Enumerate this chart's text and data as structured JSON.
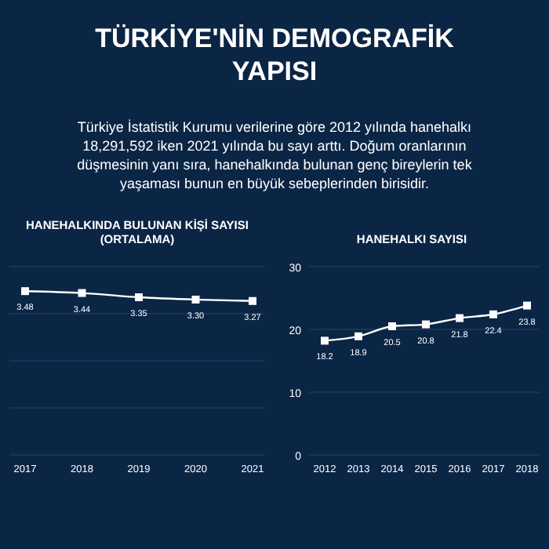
{
  "chart_data": [
    {
      "type": "other",
      "title": "TÜRKİYE'NİN DEMOGRAFİK YAPISI",
      "subtitle": "Türkiye İstatistik Kurumu verilerine göre 2012 yılında hanehalkı 18,291,592 iken 2021 yılında bu sayı arttı. Doğum oranlarının düşmesinin yanı sıra, hanehalkında bulunan genç bireylerin tek yaşaması bunun en büyük sebeplerinden birisidir."
    },
    {
      "type": "line",
      "title": "HANEHALKINDA BULUNAN KİŞİ SAYISI (ORTALAMA)",
      "categories": [
        "2017",
        "2018",
        "2019",
        "2020",
        "2021"
      ],
      "values": [
        3.48,
        3.44,
        3.35,
        3.3,
        3.27
      ],
      "value_labels": [
        "3.48",
        "3.44",
        "3.35",
        "3.30",
        "3.27"
      ],
      "color": "#ffffff",
      "ylim": [
        0,
        4
      ],
      "yticks": [
        0,
        1,
        2,
        3,
        4
      ],
      "tick_labels": "x",
      "grid": "y",
      "marker": "square"
    },
    {
      "type": "line",
      "title": "HANEHALKI SAYISI",
      "categories": [
        "2012",
        "2013",
        "2014",
        "2015",
        "2016",
        "2017",
        "2018"
      ],
      "values": [
        18.2,
        18.9,
        20.5,
        20.8,
        21.8,
        22.4,
        23.8
      ],
      "color": "#ffffff",
      "ylim": [
        0,
        30
      ],
      "yticks": [
        0,
        10,
        20,
        30
      ],
      "grid": "y",
      "data_labels": true,
      "marker": "square"
    }
  ]
}
